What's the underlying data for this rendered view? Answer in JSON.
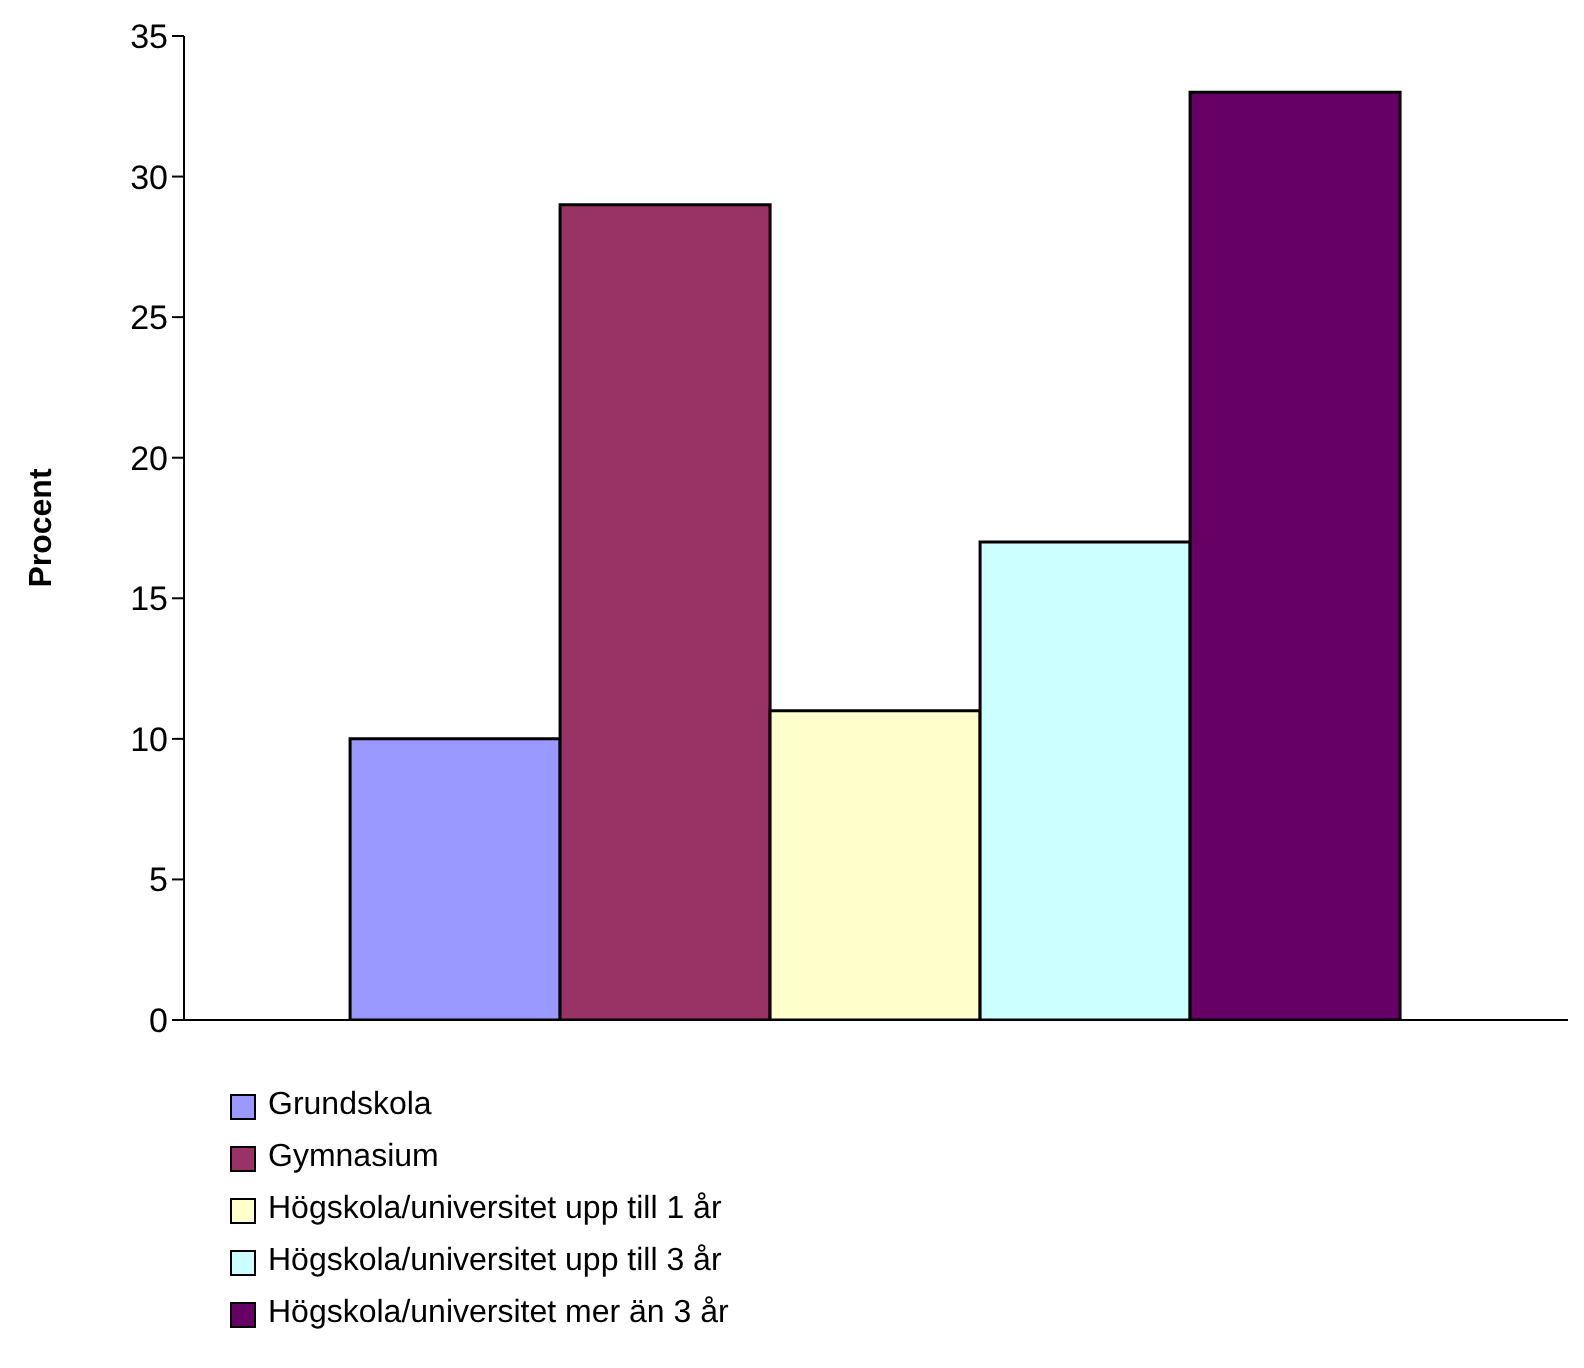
{
  "chart_data": {
    "type": "bar",
    "ylabel": "Procent",
    "categories": [
      null
    ],
    "series": [
      {
        "name": "Grundskola",
        "color": "#9999ff",
        "values": [
          10
        ]
      },
      {
        "name": "Gymnasium",
        "color": "#993366",
        "values": [
          29
        ]
      },
      {
        "name": "Högskola/universitet upp till 1 år",
        "color": "#ffffcc",
        "values": [
          11
        ]
      },
      {
        "name": "Högskola/universitet upp till 3 år",
        "color": "#ccffff",
        "values": [
          17
        ]
      },
      {
        "name": "Högskola/universitet mer än 3 år",
        "color": "#660066",
        "values": [
          33
        ]
      }
    ],
    "ylim": [
      0,
      35
    ],
    "yticks": [
      0,
      5,
      10,
      15,
      20,
      25,
      30,
      35
    ],
    "legend": "bottom"
  }
}
